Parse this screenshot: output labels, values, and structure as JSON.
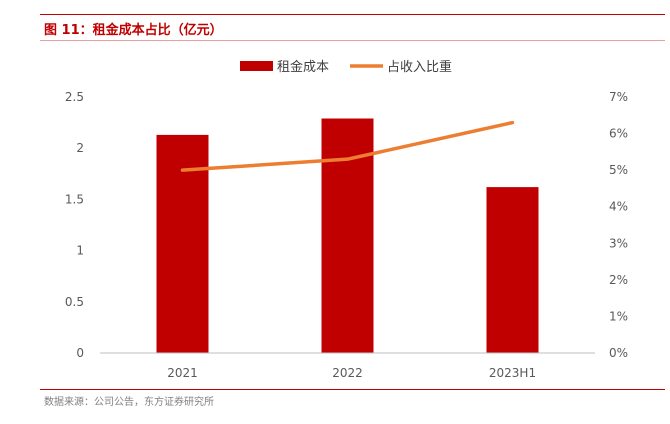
{
  "figure": {
    "title": "图 11：租金成本占比（亿元）",
    "source": "数据来源：公司公告，东方证券研究所"
  },
  "colors": {
    "bar": "#c00000",
    "line": "#ed7d31",
    "accent": "#c00000"
  },
  "chart_data": {
    "type": "bar",
    "title": "租金成本占比（亿元）",
    "categories": [
      "2021",
      "2022",
      "2023H1"
    ],
    "series": [
      {
        "name": "租金成本",
        "type": "bar",
        "axis": "left",
        "values": [
          2.13,
          2.29,
          1.62
        ]
      },
      {
        "name": "占收入比重",
        "type": "line",
        "axis": "right",
        "values": [
          5.0,
          5.3,
          6.3
        ],
        "unit": "%"
      }
    ],
    "ylim_left": [
      0,
      2.5
    ],
    "yticks_left": [
      "0",
      "0.5",
      "1",
      "1.5",
      "2",
      "2.5"
    ],
    "ylim_right": [
      0,
      7
    ],
    "yticks_right": [
      "0%",
      "1%",
      "2%",
      "3%",
      "4%",
      "5%",
      "6%",
      "7%"
    ],
    "legend_position": "top-center",
    "grid": false
  }
}
